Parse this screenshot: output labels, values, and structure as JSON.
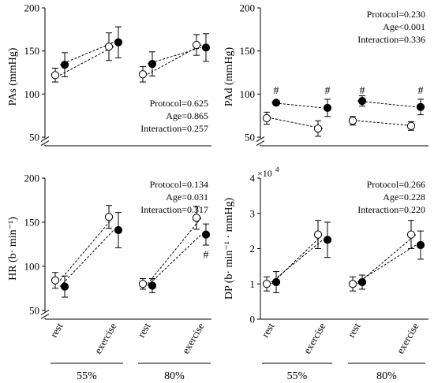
{
  "chart_data": [
    {
      "id": "pas",
      "type": "scatter",
      "ylabel": "PAs (mmHg)",
      "ylim": [
        50,
        200
      ],
      "yticks": [
        "50",
        "100",
        "150",
        "200"
      ],
      "axis_break": true,
      "categories": [
        "rest",
        "exercise",
        "rest",
        "exercise"
      ],
      "groups": [
        "55%",
        "80%"
      ],
      "series": [
        {
          "marker": "open",
          "values": [
            122,
            155,
            123,
            157
          ],
          "err": [
            8,
            16,
            9,
            12
          ]
        },
        {
          "marker": "filled",
          "values": [
            134,
            160,
            135,
            154
          ],
          "err": [
            14,
            18,
            14,
            16
          ]
        }
      ],
      "stats": [
        "Protocol=0.625",
        "Age=0.865",
        "Interaction=0.257"
      ],
      "stats_position": "bottom-right",
      "hash_marks": []
    },
    {
      "id": "pad",
      "type": "scatter",
      "ylabel": "PAd (mmHg)",
      "ylim": [
        50,
        200
      ],
      "yticks": [
        "50",
        "100",
        "150",
        "200"
      ],
      "axis_break": true,
      "categories": [
        "rest",
        "exercise",
        "rest",
        "exercise"
      ],
      "groups": [
        "55%",
        "80%"
      ],
      "series": [
        {
          "marker": "open",
          "values": [
            72,
            60,
            69,
            63
          ],
          "err": [
            7,
            9,
            5,
            5
          ]
        },
        {
          "marker": "filled",
          "values": [
            90,
            84,
            92,
            85
          ],
          "err": [
            0,
            10,
            6,
            9
          ]
        }
      ],
      "stats": [
        "Protocol=0.230",
        "Age<0.001",
        "Interaction=0.336"
      ],
      "stats_position": "top-right",
      "hash_marks": [
        {
          "index": 0,
          "y": 104,
          "label": "#"
        },
        {
          "index": 1,
          "y": 104,
          "label": "#"
        },
        {
          "index": 2,
          "y": 104,
          "label": "#"
        },
        {
          "index": 3,
          "y": 104,
          "label": "#"
        }
      ]
    },
    {
      "id": "hr",
      "type": "scatter",
      "ylabel": "HR (b· min⁻¹)",
      "ylim": [
        50,
        200
      ],
      "yticks": [
        "50",
        "100",
        "150",
        "200"
      ],
      "axis_break": true,
      "categories": [
        "rest",
        "exercise",
        "rest",
        "exercise"
      ],
      "groups": [
        "55%",
        "80%"
      ],
      "series": [
        {
          "marker": "open",
          "values": [
            84,
            156,
            80,
            155
          ],
          "err": [
            9,
            13,
            6,
            13
          ]
        },
        {
          "marker": "filled",
          "values": [
            77,
            141,
            78,
            136
          ],
          "err": [
            12,
            20,
            8,
            12
          ]
        }
      ],
      "stats": [
        "Protocol=0.134",
        "Age=0.031",
        "Interaction=0.317"
      ],
      "stats_position": "top-right",
      "hash_marks": [
        {
          "index": 3,
          "y": 113,
          "label": "#"
        }
      ]
    },
    {
      "id": "dp",
      "type": "scatter",
      "ylabel": "DP (b· min⁻¹ · mmHg)",
      "ylim": [
        0,
        4
      ],
      "yticks": [
        "0",
        "1",
        "2",
        "3",
        "4"
      ],
      "y_multiplier": "×10",
      "y_multiplier_exp": "4",
      "axis_break": false,
      "categories": [
        "rest",
        "exercise",
        "rest",
        "exercise"
      ],
      "groups": [
        "55%",
        "80%"
      ],
      "series": [
        {
          "marker": "open",
          "values": [
            1.0,
            2.4,
            1.0,
            2.4
          ],
          "err": [
            0.2,
            0.4,
            0.2,
            0.4
          ]
        },
        {
          "marker": "filled",
          "values": [
            1.05,
            2.25,
            1.05,
            2.1
          ],
          "err": [
            0.3,
            0.5,
            0.2,
            0.4
          ]
        }
      ],
      "stats": [
        "Protocol=0.266",
        "Age=0.228",
        "Interaction=0.220"
      ],
      "stats_position": "top-right",
      "hash_marks": []
    }
  ]
}
